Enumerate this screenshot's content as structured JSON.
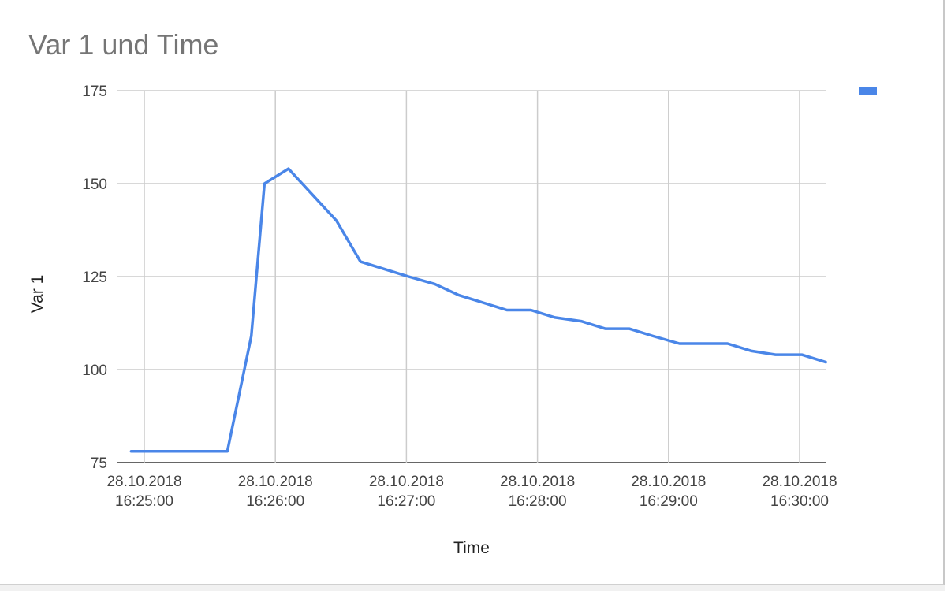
{
  "chart_data": {
    "type": "line",
    "title": "Var 1 und Time",
    "xlabel": "Time",
    "ylabel": "Var 1",
    "ylim": [
      75,
      175
    ],
    "yticks": [
      75,
      100,
      125,
      150,
      175
    ],
    "x_tick_labels": [
      {
        "date": "28.10.2018",
        "time": "16:25:00",
        "t": 0
      },
      {
        "date": "28.10.2018",
        "time": "16:26:00",
        "t": 60
      },
      {
        "date": "28.10.2018",
        "time": "16:27:00",
        "t": 120
      },
      {
        "date": "28.10.2018",
        "time": "16:28:00",
        "t": 180
      },
      {
        "date": "28.10.2018",
        "time": "16:29:00",
        "t": 240
      },
      {
        "date": "28.10.2018",
        "time": "16:30:00",
        "t": 300
      }
    ],
    "grid": true,
    "legend": "top-right",
    "series": [
      {
        "color": "#4a86e8",
        "points": [
          {
            "x": "16:24:54",
            "y": 78
          },
          {
            "x": "16:25:05",
            "y": 78
          },
          {
            "x": "16:25:16",
            "y": 78
          },
          {
            "x": "16:25:27",
            "y": 78
          },
          {
            "x": "16:25:38",
            "y": 78
          },
          {
            "x": "16:25:49",
            "y": 109
          },
          {
            "x": "16:25:55",
            "y": 150
          },
          {
            "x": "16:26:06",
            "y": 154
          },
          {
            "x": "16:26:17",
            "y": 147
          },
          {
            "x": "16:26:28",
            "y": 140
          },
          {
            "x": "16:26:39",
            "y": 129
          },
          {
            "x": "16:26:50",
            "y": 127
          },
          {
            "x": "16:27:01",
            "y": 125
          },
          {
            "x": "16:27:13",
            "y": 123
          },
          {
            "x": "16:27:24",
            "y": 120
          },
          {
            "x": "16:27:35",
            "y": 118
          },
          {
            "x": "16:27:46",
            "y": 116
          },
          {
            "x": "16:27:57",
            "y": 116
          },
          {
            "x": "16:28:08",
            "y": 114
          },
          {
            "x": "16:28:20",
            "y": 113
          },
          {
            "x": "16:28:31",
            "y": 111
          },
          {
            "x": "16:28:42",
            "y": 111
          },
          {
            "x": "16:28:53",
            "y": 109
          },
          {
            "x": "16:29:05",
            "y": 107
          },
          {
            "x": "16:29:16",
            "y": 107
          },
          {
            "x": "16:29:27",
            "y": 107
          },
          {
            "x": "16:29:38",
            "y": 105
          },
          {
            "x": "16:29:49",
            "y": 104
          },
          {
            "x": "16:30:01",
            "y": 104
          },
          {
            "x": "16:30:12",
            "y": 102
          }
        ]
      }
    ]
  }
}
